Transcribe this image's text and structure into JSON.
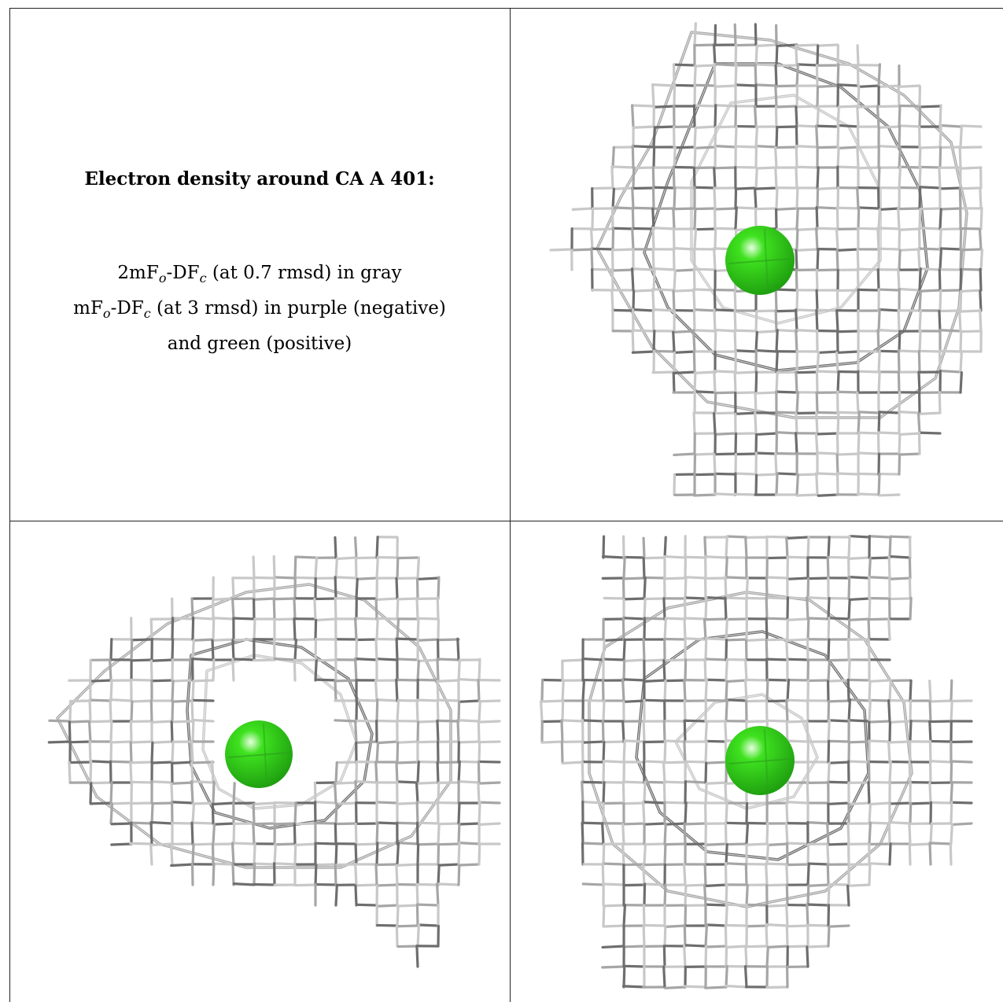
{
  "caption": {
    "title": "Electron density around CA A 401:",
    "line1": {
      "prefix": "2mF",
      "sub1": "o",
      "mid": "-DF",
      "sub2": "c",
      "rest": " (at 0.7 rmsd) in gray"
    },
    "line2": {
      "prefix": "mF",
      "sub1": "o",
      "mid": "-DF",
      "sub2": "c",
      "rest": " (at 3 rmsd) in purple (negative)"
    },
    "line3": "and green (positive)"
  },
  "colors": {
    "mesh_light": "#c8c8c8",
    "mesh_mid": "#a6a6a6",
    "mesh_dark": "#6e6e6e",
    "atom_green": "#3fe21f",
    "atom_green_dark": "#1f9f10",
    "rule": "#222222"
  },
  "panels": [
    {
      "name": "view-top-right",
      "icon": "electron-density-mesh"
    },
    {
      "name": "view-bottom-left",
      "icon": "electron-density-mesh"
    },
    {
      "name": "view-bottom-right",
      "icon": "electron-density-mesh"
    }
  ]
}
